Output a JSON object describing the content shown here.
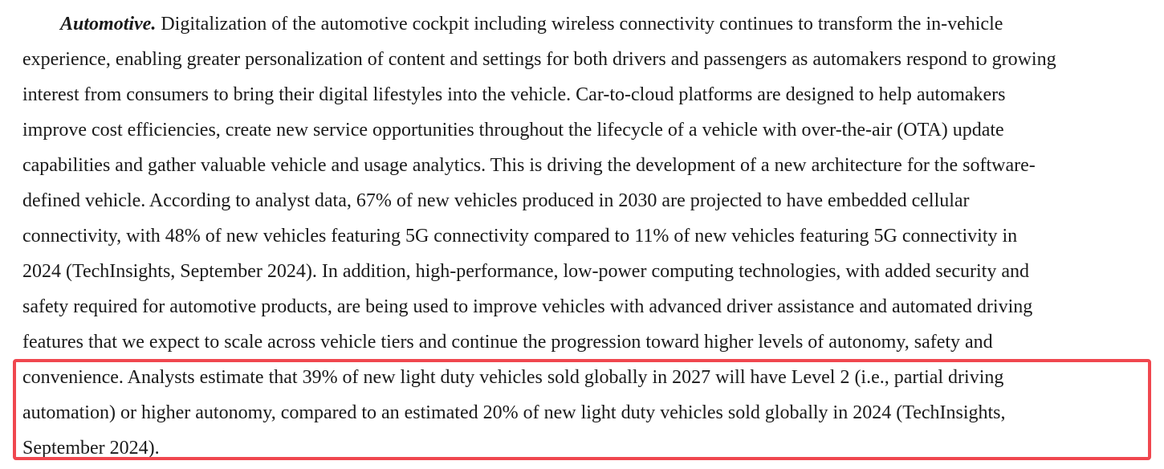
{
  "document": {
    "paragraph": {
      "lead_term": "Automotive.",
      "lines": [
        " Digitalization of the automotive cockpit including wireless connectivity continues to transform the in-vehicle",
        "experience, enabling greater personalization of content and settings for both drivers and passengers as automakers respond to growing",
        "interest from consumers to bring their digital lifestyles into the vehicle. Car-to-cloud platforms are designed to help automakers",
        "improve cost efficiencies, create new service opportunities throughout the lifecycle of a vehicle with over-the-air (OTA) update",
        "capabilities and gather valuable vehicle and usage analytics. This is driving the development of a new architecture for the software-",
        "defined vehicle. According to analyst data, 67% of new vehicles produced in 2030 are projected to have embedded cellular",
        "connectivity, with 48% of new vehicles featuring 5G connectivity compared to 11% of new vehicles featuring 5G connectivity in",
        "2024 (TechInsights, September 2024). In addition, high-performance, low-power computing technologies, with added security and",
        "safety required for automotive products, are being used to improve vehicles with advanced driver assistance and automated driving",
        "features that we expect to scale across vehicle tiers and continue the progression toward higher levels of autonomy, safety and",
        "convenience. Analysts estimate that 39% of new light duty vehicles sold globally in 2027 will have Level 2 (i.e., partial driving",
        "automation) or higher autonomy, compared to an estimated 20% of new light duty vehicles sold globally in 2024 (TechInsights,",
        "September 2024)."
      ]
    },
    "highlight_color": "#f0474f"
  }
}
